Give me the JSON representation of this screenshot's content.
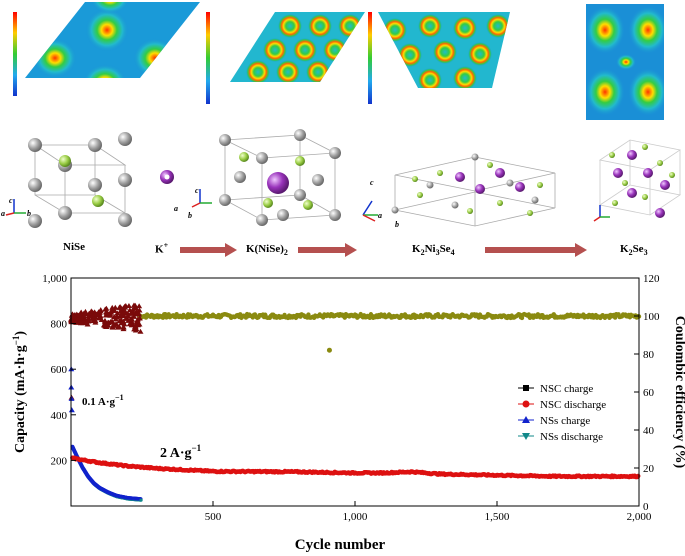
{
  "top_panel": {
    "species": [
      "NiSe",
      "K",
      "K(NiSe)",
      "K",
      "Ni",
      "Se",
      "K",
      "Se"
    ],
    "species_sub": {
      "kplus_sup": "+",
      "knise_sub": "2",
      "k2ni3se4": [
        "2",
        "3",
        "4"
      ],
      "k2se3": [
        "2",
        "3"
      ]
    },
    "axis_labels": {
      "a": "a",
      "b": "b",
      "c": "c"
    }
  },
  "labels": {
    "nise": "NiSe",
    "kplus": "K",
    "kplus_sup": "+",
    "knise": "K(NiSe)",
    "knise_sub": "2",
    "k2ni3se4_parts": [
      "K",
      "2",
      "Ni",
      "3",
      "Se",
      "4"
    ],
    "k2se3_parts": [
      "K",
      "2",
      "Se",
      "3"
    ]
  },
  "colors": {
    "arrow": "#b5504f",
    "ni_atom": "#9a9a9a",
    "se_atom": "#99cc44",
    "k_atom": "#8833aa",
    "nsc_charge": "#000000",
    "nsc_discharge": "#dd1111",
    "nss_charge": "#1122cc",
    "nss_discharge": "#11888a",
    "efficiency": "#8a8a10",
    "early_efficiency": "#7a0a0a"
  },
  "chart_data": {
    "type": "scatter",
    "xlabel": "Cycle number",
    "ylabel_left": "Capacity (mA·h·g",
    "ylabel_left_sup": "−1",
    "ylabel_left_close": ")",
    "ylabel_right": "Coulombic efficiency (%)",
    "xlim": [
      0,
      2000
    ],
    "ylim_left": [
      0,
      1000
    ],
    "ylim_right": [
      0,
      120
    ],
    "x_ticks": [
      500,
      1000,
      1500,
      2000
    ],
    "x_tick_labels": [
      "500",
      "1,000",
      "1,500",
      "2,000"
    ],
    "y_left_ticks": [
      200,
      400,
      600,
      800,
      1000
    ],
    "y_left_tick_labels": [
      "200",
      "400",
      "600",
      "800",
      "1,000"
    ],
    "y_right_ticks": [
      0,
      20,
      40,
      60,
      80,
      100,
      120
    ],
    "y_right_tick_labels": [
      "0",
      "20",
      "40",
      "60",
      "80",
      "100",
      "120"
    ],
    "annotations": [
      {
        "text": "0.1 A·g",
        "sup": "−1"
      },
      {
        "text": "2 A·g",
        "sup": "−1"
      }
    ],
    "legend": [
      "NSC charge",
      "NSC discharge",
      "NSs charge",
      "NSs discharge"
    ],
    "series": [
      {
        "name": "NSC discharge (capacity, 2 A/g)",
        "points": [
          [
            5,
            210
          ],
          [
            50,
            200
          ],
          [
            100,
            190
          ],
          [
            200,
            175
          ],
          [
            300,
            165
          ],
          [
            500,
            152
          ],
          [
            780,
            150
          ],
          [
            1000,
            145
          ],
          [
            1100,
            145
          ],
          [
            1200,
            150
          ],
          [
            1300,
            140
          ],
          [
            1500,
            135
          ],
          [
            1700,
            130
          ],
          [
            2000,
            130
          ]
        ]
      },
      {
        "name": "NSs decay (capacity)",
        "points": [
          [
            5,
            260
          ],
          [
            20,
            220
          ],
          [
            40,
            170
          ],
          [
            60,
            130
          ],
          [
            80,
            100
          ],
          [
            100,
            80
          ],
          [
            130,
            60
          ],
          [
            160,
            45
          ],
          [
            200,
            35
          ],
          [
            245,
            30
          ]
        ]
      },
      {
        "name": "Coulombic efficiency",
        "value": 100,
        "x_range": [
          0,
          2000
        ],
        "outlier": [
          910,
          82
        ]
      },
      {
        "name": "Early efficiency scatter",
        "x_range": [
          0,
          245
        ],
        "y_range": [
          95,
          110
        ]
      }
    ]
  }
}
